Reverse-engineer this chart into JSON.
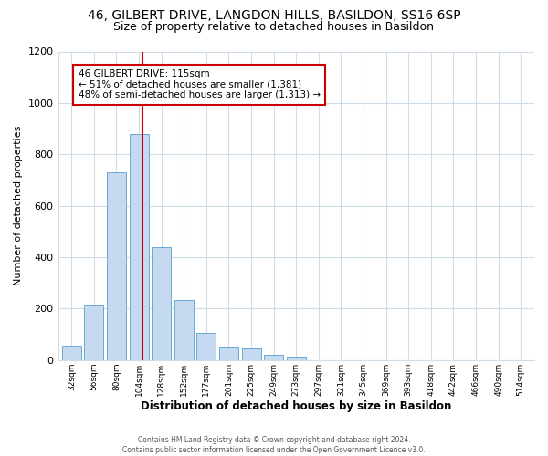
{
  "title": "46, GILBERT DRIVE, LANGDON HILLS, BASILDON, SS16 6SP",
  "subtitle": "Size of property relative to detached houses in Basildon",
  "xlabel": "Distribution of detached houses by size in Basildon",
  "ylabel": "Number of detached properties",
  "bar_labels": [
    "32sqm",
    "56sqm",
    "80sqm",
    "104sqm",
    "128sqm",
    "152sqm",
    "177sqm",
    "201sqm",
    "225sqm",
    "249sqm",
    "273sqm",
    "297sqm",
    "321sqm",
    "345sqm",
    "369sqm",
    "393sqm",
    "418sqm",
    "442sqm",
    "466sqm",
    "490sqm",
    "514sqm"
  ],
  "bar_values": [
    55,
    215,
    730,
    880,
    440,
    235,
    105,
    50,
    45,
    20,
    13,
    0,
    0,
    0,
    0,
    0,
    0,
    0,
    0,
    0,
    0
  ],
  "bar_color": "#c5d9f0",
  "bar_edge_color": "#6aaad4",
  "vline_color": "#cc0000",
  "vline_position": 3.15,
  "annotation_title": "46 GILBERT DRIVE: 115sqm",
  "annotation_line1": "← 51% of detached houses are smaller (1,381)",
  "annotation_line2": "48% of semi-detached houses are larger (1,313) →",
  "annotation_box_color": "#ffffff",
  "annotation_box_edge": "#cc0000",
  "ylim": [
    0,
    1200
  ],
  "yticks": [
    0,
    200,
    400,
    600,
    800,
    1000,
    1200
  ],
  "footer1": "Contains HM Land Registry data © Crown copyright and database right 2024.",
  "footer2": "Contains public sector information licensed under the Open Government Licence v3.0.",
  "title_fontsize": 10,
  "subtitle_fontsize": 9,
  "background_color": "#ffffff",
  "grid_color": "#d0dce8"
}
